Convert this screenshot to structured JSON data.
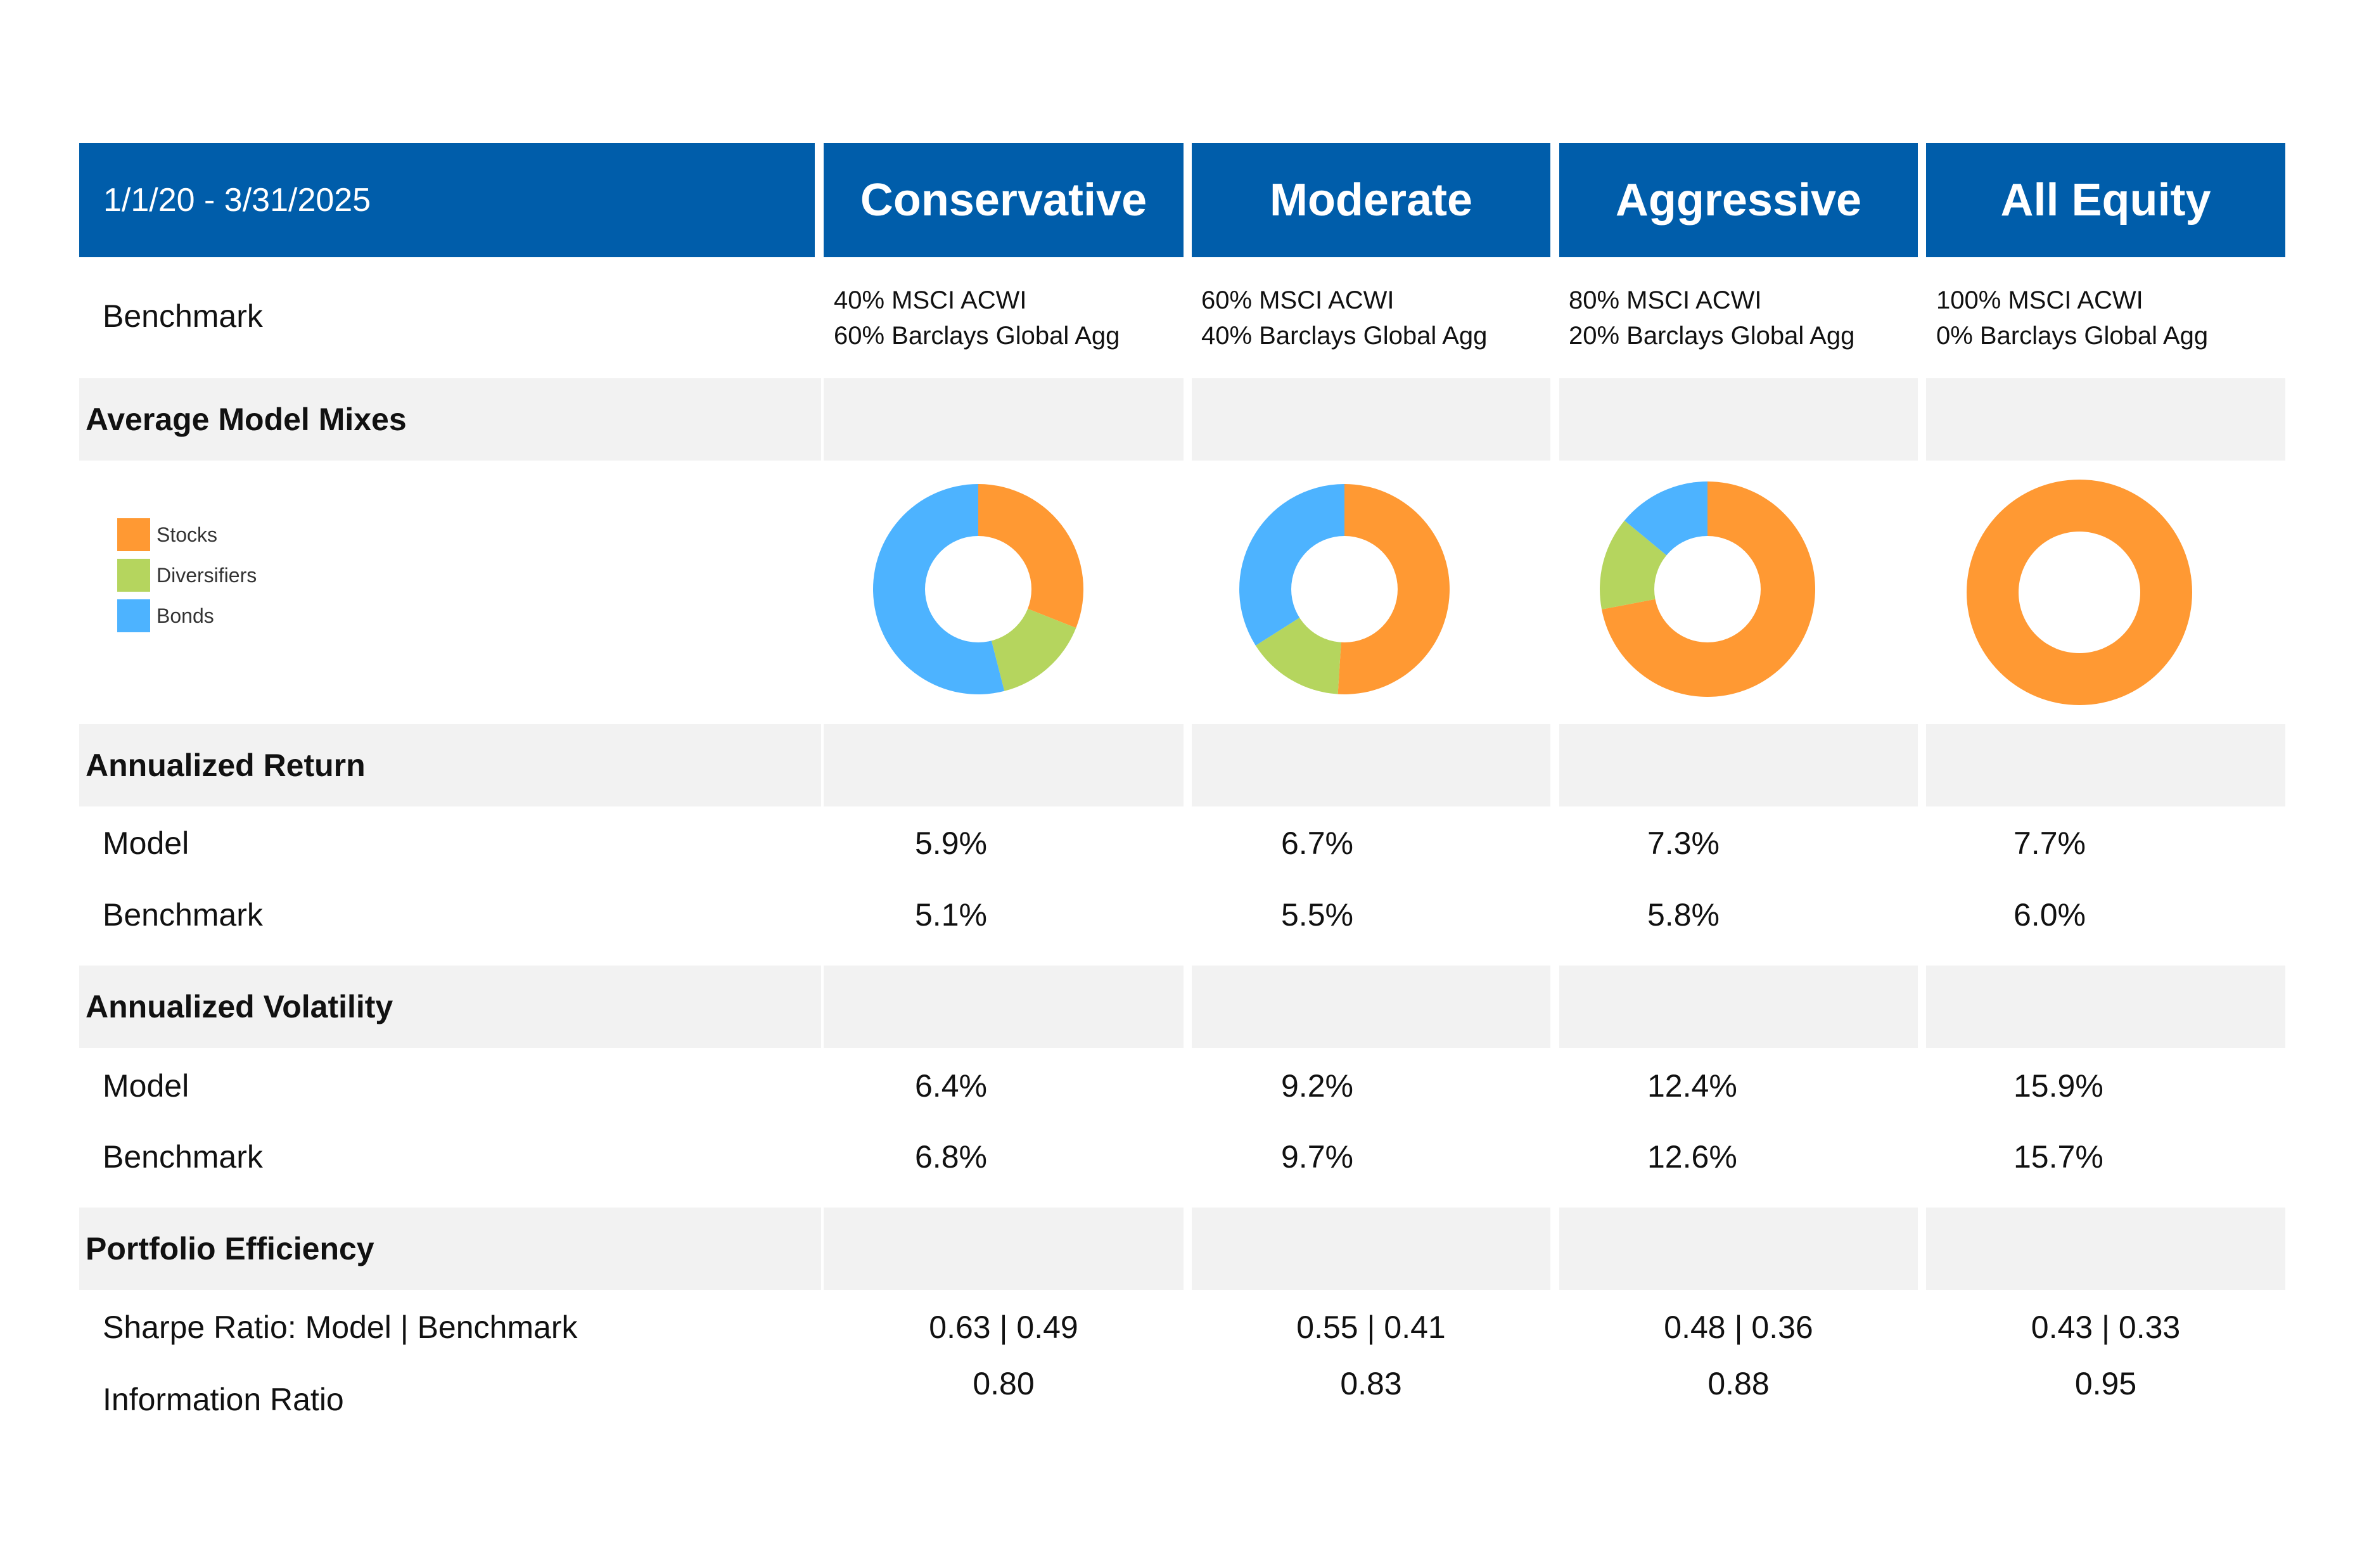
{
  "header": {
    "period": "1/1/20 - 3/31/2025",
    "models": [
      "Conservative",
      "Moderate",
      "Aggressive",
      "All Equity"
    ]
  },
  "benchmark": {
    "label": "Benchmark",
    "lines": [
      [
        "40% MSCI ACWI",
        "60% Barclays Global Agg"
      ],
      [
        "60% MSCI ACWI",
        "40% Barclays Global Agg"
      ],
      [
        "80% MSCI ACWI",
        "20% Barclays Global Agg"
      ],
      [
        "100% MSCI ACWI",
        "0% Barclays Global Agg"
      ]
    ]
  },
  "sections": {
    "mixes": "Average Model Mixes",
    "return": "Annualized Return",
    "volatility": "Annualized Volatility",
    "efficiency": "Portfolio Efficiency"
  },
  "legend": [
    {
      "label": "Stocks",
      "color": "#FF9933"
    },
    {
      "label": "Diversifiers",
      "color": "#B5D55E"
    },
    {
      "label": "Bonds",
      "color": "#4DB3FF"
    }
  ],
  "returns": {
    "model_label": "Model",
    "benchmark_label": "Benchmark",
    "model": [
      "5.9%",
      "6.7%",
      "7.3%",
      "7.7%"
    ],
    "benchmark": [
      "5.1%",
      "5.5%",
      "5.8%",
      "6.0%"
    ]
  },
  "volatility": {
    "model_label": "Model",
    "benchmark_label": "Benchmark",
    "model": [
      "6.4%",
      "9.2%",
      "12.4%",
      "15.9%"
    ],
    "benchmark": [
      "6.8%",
      "9.7%",
      "12.6%",
      "15.7%"
    ]
  },
  "efficiency": {
    "sharpe_label": "Sharpe Ratio: Model | Benchmark",
    "info_label": "Information Ratio",
    "sharpe": [
      "0.63 | 0.49",
      "0.55 | 0.41",
      "0.48 | 0.36",
      "0.43 | 0.33"
    ],
    "info": [
      "0.80",
      "0.83",
      "0.88",
      "0.95"
    ]
  },
  "chart_data": {
    "type": "pie",
    "title": "Average Model Mixes",
    "categories": [
      "Stocks",
      "Diversifiers",
      "Bonds"
    ],
    "series": [
      {
        "name": "Conservative",
        "values": [
          31,
          15,
          54
        ]
      },
      {
        "name": "Moderate",
        "values": [
          51,
          15,
          34
        ]
      },
      {
        "name": "Aggressive",
        "values": [
          72,
          14,
          14
        ]
      },
      {
        "name": "All Equity",
        "values": [
          100,
          0,
          0
        ]
      }
    ]
  }
}
